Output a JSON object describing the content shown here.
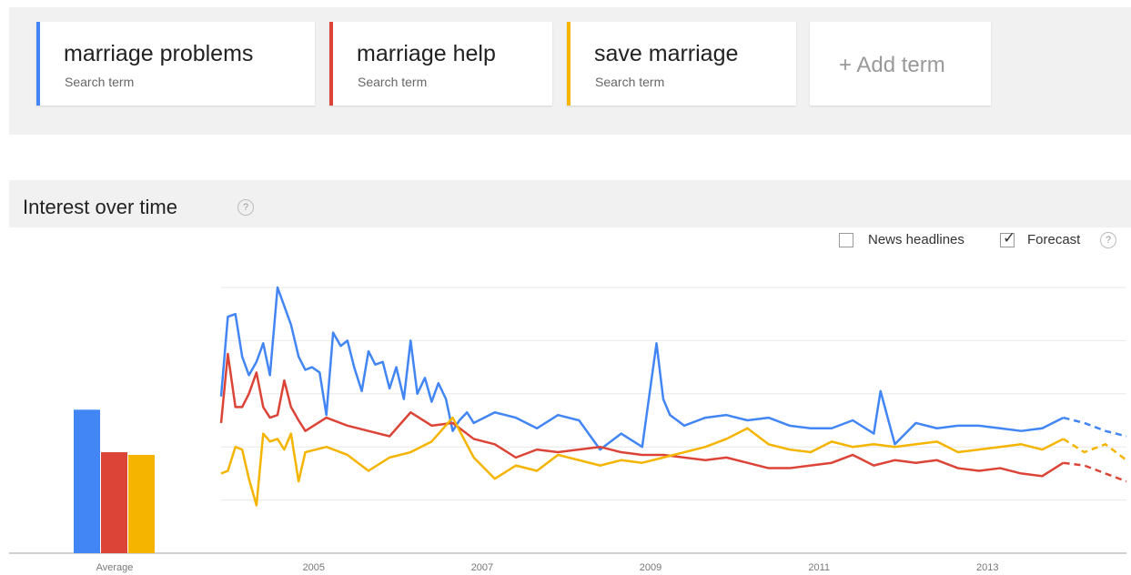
{
  "search_terms": [
    {
      "name": "marriage problems",
      "subtitle": "Search term",
      "color": "#4285f4"
    },
    {
      "name": "marriage help",
      "subtitle": "Search term",
      "color": "#db4437"
    },
    {
      "name": "save marriage",
      "subtitle": "Search term",
      "color": "#f4b400"
    }
  ],
  "add_term_label": "+ Add term",
  "section_title": "Interest over time",
  "help_glyph": "?",
  "options": {
    "news_headlines": {
      "label": "News headlines",
      "checked": false
    },
    "forecast": {
      "label": "Forecast",
      "checked": true
    }
  },
  "chart_data": {
    "type": "line",
    "x_axis_ticks": [
      "2005",
      "2007",
      "2009",
      "2011",
      "2013"
    ],
    "average_label": "Average",
    "ylim": [
      0,
      100
    ],
    "gridlines": [
      20,
      40,
      60,
      80
    ],
    "x_start": 2004.0,
    "x_end": 2014.75,
    "forecast_start": 2014.0,
    "averages": [
      {
        "name": "marriage problems",
        "value": 54,
        "color": "#4285f4"
      },
      {
        "name": "marriage help",
        "value": 38,
        "color": "#db4437"
      },
      {
        "name": "save marriage",
        "value": 37,
        "color": "#f4b400"
      }
    ],
    "series": [
      {
        "name": "marriage problems",
        "color": "#4285f4",
        "x": [
          2004.0,
          2004.08,
          2004.17,
          2004.25,
          2004.33,
          2004.42,
          2004.5,
          2004.58,
          2004.67,
          2004.75,
          2004.83,
          2004.92,
          2005.0,
          2005.08,
          2005.17,
          2005.25,
          2005.33,
          2005.42,
          2005.5,
          2005.58,
          2005.67,
          2005.75,
          2005.83,
          2005.92,
          2006.0,
          2006.08,
          2006.17,
          2006.25,
          2006.33,
          2006.42,
          2006.5,
          2006.58,
          2006.67,
          2006.75,
          2006.83,
          2006.92,
          2007.0,
          2007.25,
          2007.5,
          2007.75,
          2008.0,
          2008.25,
          2008.5,
          2008.75,
          2009.0,
          2009.17,
          2009.25,
          2009.33,
          2009.5,
          2009.75,
          2010.0,
          2010.25,
          2010.5,
          2010.75,
          2011.0,
          2011.25,
          2011.5,
          2011.75,
          2011.83,
          2012.0,
          2012.25,
          2012.5,
          2012.75,
          2013.0,
          2013.25,
          2013.5,
          2013.75,
          2014.0,
          2014.25,
          2014.5,
          2014.75
        ],
        "y": [
          59,
          89,
          90,
          74,
          67,
          72,
          79,
          67,
          100,
          93,
          86,
          74,
          69,
          70,
          68,
          52,
          83,
          78,
          80,
          70,
          61,
          76,
          71,
          72,
          62,
          70,
          58,
          80,
          60,
          66,
          57,
          64,
          58,
          46,
          50,
          53,
          49,
          53,
          51,
          47,
          52,
          50,
          39,
          45,
          40,
          79,
          58,
          52,
          48,
          51,
          52,
          50,
          51,
          48,
          47,
          47,
          50,
          45,
          61,
          41,
          49,
          47,
          48,
          48,
          47,
          46,
          47,
          51,
          49,
          46,
          44
        ],
        "forecast_from_index": 67
      },
      {
        "name": "marriage help",
        "color": "#db4437",
        "x": [
          2004.0,
          2004.08,
          2004.17,
          2004.25,
          2004.33,
          2004.42,
          2004.5,
          2004.58,
          2004.67,
          2004.75,
          2004.83,
          2004.92,
          2005.0,
          2005.25,
          2005.5,
          2005.75,
          2006.0,
          2006.25,
          2006.5,
          2006.75,
          2007.0,
          2007.25,
          2007.5,
          2007.75,
          2008.0,
          2008.5,
          2008.75,
          2009.0,
          2009.25,
          2009.5,
          2009.75,
          2010.0,
          2010.25,
          2010.5,
          2010.75,
          2011.0,
          2011.25,
          2011.5,
          2011.75,
          2012.0,
          2012.25,
          2012.5,
          2012.75,
          2013.0,
          2013.25,
          2013.5,
          2013.75,
          2014.0,
          2014.25,
          2014.5,
          2014.75
        ],
        "y": [
          49,
          75,
          55,
          55,
          60,
          68,
          55,
          51,
          52,
          65,
          55,
          50,
          46,
          51,
          48,
          46,
          44,
          53,
          48,
          49,
          43,
          41,
          36,
          39,
          38,
          40,
          38,
          37,
          37,
          36,
          35,
          36,
          34,
          32,
          32,
          33,
          34,
          37,
          33,
          35,
          34,
          35,
          32,
          31,
          32,
          30,
          29,
          34,
          33,
          30,
          27
        ],
        "forecast_from_index": 47
      },
      {
        "name": "save marriage",
        "color": "#f4b400",
        "x": [
          2004.0,
          2004.08,
          2004.17,
          2004.25,
          2004.33,
          2004.42,
          2004.5,
          2004.58,
          2004.67,
          2004.75,
          2004.83,
          2004.92,
          2005.0,
          2005.25,
          2005.5,
          2005.75,
          2006.0,
          2006.25,
          2006.5,
          2006.75,
          2007.0,
          2007.25,
          2007.5,
          2007.75,
          2008.0,
          2008.5,
          2008.75,
          2009.0,
          2009.25,
          2009.5,
          2009.75,
          2010.0,
          2010.25,
          2010.5,
          2010.75,
          2011.0,
          2011.25,
          2011.5,
          2011.75,
          2012.0,
          2012.25,
          2012.5,
          2012.75,
          2013.0,
          2013.25,
          2013.5,
          2013.75,
          2014.0,
          2014.25,
          2014.5,
          2014.75
        ],
        "y": [
          30,
          31,
          40,
          39,
          28,
          18,
          45,
          42,
          43,
          39,
          45,
          27,
          38,
          40,
          37,
          31,
          36,
          38,
          42,
          51,
          36,
          28,
          33,
          31,
          37,
          33,
          35,
          34,
          36,
          38,
          40,
          43,
          47,
          41,
          39,
          38,
          42,
          40,
          41,
          40,
          41,
          42,
          38,
          39,
          40,
          41,
          39,
          43,
          38,
          41,
          35
        ],
        "forecast_from_index": 47
      }
    ]
  }
}
